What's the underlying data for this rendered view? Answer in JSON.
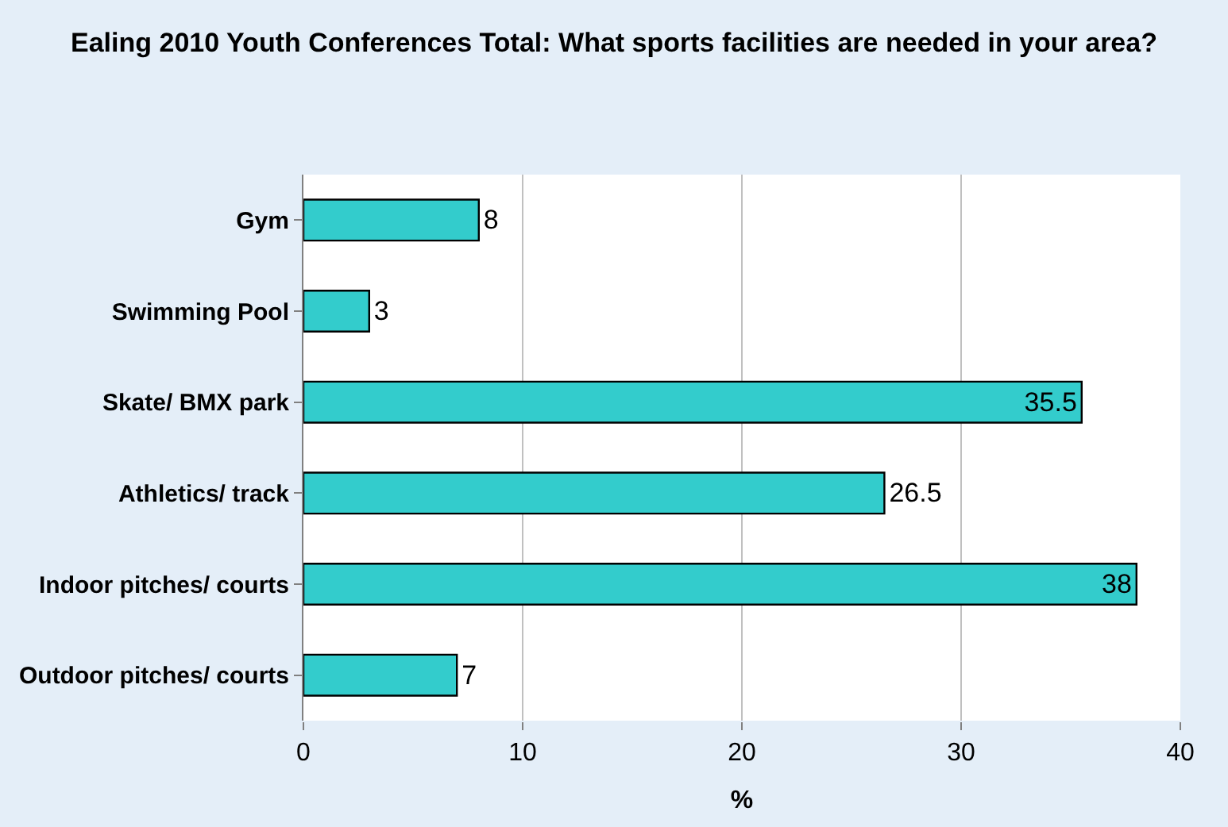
{
  "chart_data": {
    "type": "bar",
    "orientation": "horizontal",
    "title": "Ealing 2010 Youth Conferences Total: What sports facilities are needed in your area?",
    "categories": [
      "Gym",
      "Swimming Pool",
      "Skate/ BMX park",
      "Athletics/ track",
      "Indoor pitches/ courts",
      "Outdoor pitches/ courts"
    ],
    "values": [
      8,
      3,
      35.5,
      26.5,
      38,
      7
    ],
    "color": "#33cccc",
    "xlabel": "%",
    "xlim": [
      0,
      40
    ],
    "xticks": [
      0,
      10,
      20,
      30,
      40
    ],
    "grid": "x",
    "data_labels": true,
    "legend": false
  }
}
